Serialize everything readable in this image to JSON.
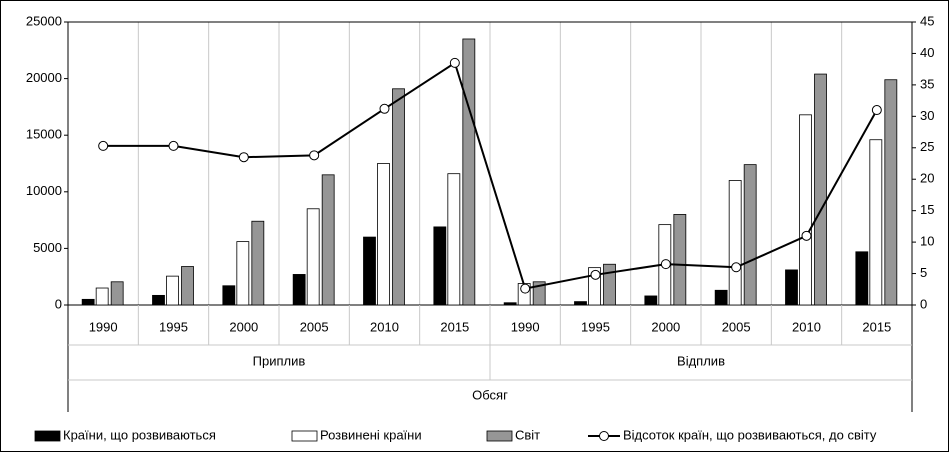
{
  "chart_data": {
    "type": "bar",
    "categories": [
      "1990",
      "1995",
      "2000",
      "2005",
      "2010",
      "2015",
      "1990",
      "1995",
      "2000",
      "2005",
      "2010",
      "2015"
    ],
    "category_groups": [
      {
        "name": "Приплив",
        "size": 6
      },
      {
        "name": "Відплив",
        "size": 6
      }
    ],
    "x_label": "Обсяг",
    "series": [
      {
        "name": "Країни, що розвиваються",
        "type": "bar",
        "color": "#000000",
        "values": [
          500,
          850,
          1700,
          2700,
          6000,
          6900,
          200,
          300,
          800,
          1300,
          3100,
          4700
        ]
      },
      {
        "name": "Розвинені країни",
        "type": "bar",
        "color": "#ffffff",
        "values": [
          1500,
          2550,
          5600,
          8500,
          12500,
          11600,
          1900,
          3300,
          7100,
          11000,
          16800,
          14600
        ]
      },
      {
        "name": "Світ",
        "type": "bar",
        "color": "#969696",
        "values": [
          2050,
          3400,
          7400,
          11500,
          19100,
          23500,
          2050,
          3600,
          8000,
          12400,
          20400,
          19900
        ]
      },
      {
        "name": "Відсоток країн, що розвиваються, до світу",
        "type": "line",
        "axis": "y2",
        "color": "#000000",
        "values": [
          25.3,
          25.3,
          23.5,
          23.8,
          31.2,
          38.5,
          2.6,
          4.8,
          6.5,
          6.0,
          11.0,
          31.0
        ]
      }
    ],
    "ylim": [
      0,
      25000
    ],
    "yticks": [
      0,
      5000,
      10000,
      15000,
      20000,
      25000
    ],
    "y2lim": [
      0,
      45
    ],
    "y2ticks": [
      0,
      5,
      10,
      15,
      20,
      25,
      30,
      35,
      40,
      45
    ],
    "grid": true,
    "legend": "bottom"
  }
}
